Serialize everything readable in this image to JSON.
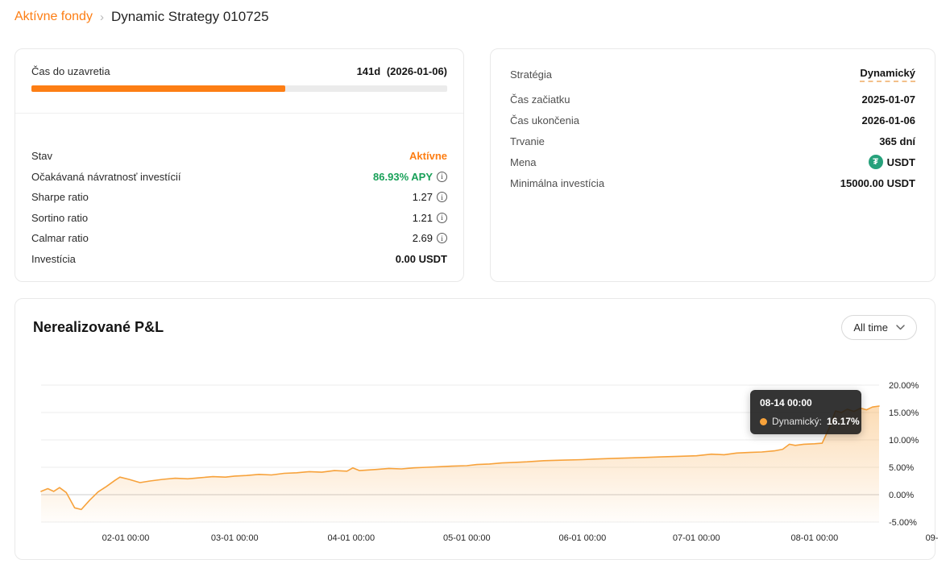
{
  "colors": {
    "accent_orange": "#fd7e14",
    "positive_green": "#18a058",
    "chart_line": "#f7a23b",
    "tether_teal": "#26a17b",
    "tooltip_bg": "#181818"
  },
  "icons": {
    "info_glyph": "i",
    "tether_glyph": "₮",
    "breadcrumb_separator": "›"
  },
  "breadcrumb": {
    "parent": "Aktívne fondy",
    "current": "Dynamic Strategy 010725"
  },
  "left_card": {
    "countdown_label": "Čas do uzavretia",
    "countdown_days": "141d",
    "countdown_date": "(2026-01-06)",
    "progress_percent": 61,
    "rows": [
      {
        "label": "Stav",
        "value": "Aktívne"
      },
      {
        "label": "Očakávaná návratnosť investícií",
        "value": "86.93% APY"
      },
      {
        "label": "Sharpe ratio",
        "value": "1.27"
      },
      {
        "label": "Sortino ratio",
        "value": "1.21"
      },
      {
        "label": "Calmar ratio",
        "value": "2.69"
      },
      {
        "label": "Investícia",
        "value": "0.00 USDT"
      }
    ]
  },
  "right_card": {
    "rows": [
      {
        "label": "Stratégia",
        "value": "Dynamický"
      },
      {
        "label": "Čas začiatku",
        "value": "2025-01-07"
      },
      {
        "label": "Čas ukončenia",
        "value": "2026-01-06"
      },
      {
        "label": "Trvanie",
        "value": "365 dní"
      },
      {
        "label": "Mena",
        "value": "USDT"
      },
      {
        "label": "Minimálna investícia",
        "value": "15000.00 USDT"
      }
    ]
  },
  "chart_section": {
    "title": "Nerealizované P&L",
    "range_selected": "All time",
    "tooltip": {
      "time": "08-14 00:00",
      "series_label": "Dynamický:",
      "value": "16.17%"
    }
  },
  "chart_data": {
    "type": "area",
    "title": "Nerealizované P&L",
    "series": [
      {
        "name": "Dynamický",
        "color": "#f7a23b"
      }
    ],
    "ylim": [
      -5,
      20
    ],
    "grid": true,
    "y_axis_position": "right",
    "legend": false,
    "tooltip_point": {
      "x_label": "08-14 00:00",
      "value_percent": 16.17
    },
    "y_ticks": [
      {
        "value": 20,
        "label": "20.00%"
      },
      {
        "value": 15,
        "label": "15.00%"
      },
      {
        "value": 10,
        "label": "10.00%"
      },
      {
        "value": 5,
        "label": "5.00%"
      },
      {
        "value": 0,
        "label": "0.00%"
      },
      {
        "value": -5,
        "label": "-5.00%"
      }
    ],
    "x_ticks": [
      {
        "pos": 0.101,
        "label": "02-01 00:00"
      },
      {
        "pos": 0.231,
        "label": "03-01 00:00"
      },
      {
        "pos": 0.37,
        "label": "04-01 00:00"
      },
      {
        "pos": 0.508,
        "label": "05-01 00:00"
      },
      {
        "pos": 0.646,
        "label": "06-01 00:00"
      },
      {
        "pos": 0.782,
        "label": "07-01 00:00"
      },
      {
        "pos": 0.923,
        "label": "08-01 00:00"
      },
      {
        "pos": 1.063,
        "label": "09-"
      }
    ],
    "points": [
      [
        0.0,
        0.6
      ],
      [
        0.008,
        1.1
      ],
      [
        0.015,
        0.6
      ],
      [
        0.022,
        1.3
      ],
      [
        0.03,
        0.4
      ],
      [
        0.04,
        -2.4
      ],
      [
        0.048,
        -2.7
      ],
      [
        0.058,
        -1.0
      ],
      [
        0.068,
        0.5
      ],
      [
        0.078,
        1.5
      ],
      [
        0.088,
        2.6
      ],
      [
        0.094,
        3.2
      ],
      [
        0.105,
        2.8
      ],
      [
        0.118,
        2.2
      ],
      [
        0.13,
        2.5
      ],
      [
        0.145,
        2.8
      ],
      [
        0.16,
        3.0
      ],
      [
        0.175,
        2.9
      ],
      [
        0.19,
        3.1
      ],
      [
        0.205,
        3.3
      ],
      [
        0.22,
        3.2
      ],
      [
        0.231,
        3.4
      ],
      [
        0.245,
        3.5
      ],
      [
        0.26,
        3.7
      ],
      [
        0.275,
        3.6
      ],
      [
        0.29,
        3.9
      ],
      [
        0.305,
        4.0
      ],
      [
        0.32,
        4.2
      ],
      [
        0.335,
        4.1
      ],
      [
        0.35,
        4.4
      ],
      [
        0.365,
        4.3
      ],
      [
        0.372,
        4.9
      ],
      [
        0.38,
        4.4
      ],
      [
        0.4,
        4.6
      ],
      [
        0.415,
        4.8
      ],
      [
        0.43,
        4.7
      ],
      [
        0.445,
        4.9
      ],
      [
        0.46,
        5.0
      ],
      [
        0.475,
        5.1
      ],
      [
        0.49,
        5.2
      ],
      [
        0.508,
        5.3
      ],
      [
        0.52,
        5.5
      ],
      [
        0.535,
        5.6
      ],
      [
        0.55,
        5.8
      ],
      [
        0.565,
        5.9
      ],
      [
        0.58,
        6.0
      ],
      [
        0.6,
        6.2
      ],
      [
        0.62,
        6.3
      ],
      [
        0.646,
        6.4
      ],
      [
        0.66,
        6.5
      ],
      [
        0.68,
        6.6
      ],
      [
        0.7,
        6.7
      ],
      [
        0.72,
        6.8
      ],
      [
        0.74,
        6.9
      ],
      [
        0.76,
        7.0
      ],
      [
        0.782,
        7.1
      ],
      [
        0.8,
        7.4
      ],
      [
        0.815,
        7.3
      ],
      [
        0.83,
        7.6
      ],
      [
        0.845,
        7.7
      ],
      [
        0.86,
        7.8
      ],
      [
        0.875,
        8.0
      ],
      [
        0.885,
        8.3
      ],
      [
        0.893,
        9.2
      ],
      [
        0.9,
        9.0
      ],
      [
        0.91,
        9.2
      ],
      [
        0.923,
        9.3
      ],
      [
        0.932,
        9.4
      ],
      [
        0.94,
        12.0
      ],
      [
        0.948,
        15.3
      ],
      [
        0.955,
        15.0
      ],
      [
        0.962,
        15.6
      ],
      [
        0.97,
        15.2
      ],
      [
        0.978,
        15.8
      ],
      [
        0.985,
        15.5
      ],
      [
        0.992,
        16.0
      ],
      [
        1.0,
        16.17
      ]
    ]
  }
}
